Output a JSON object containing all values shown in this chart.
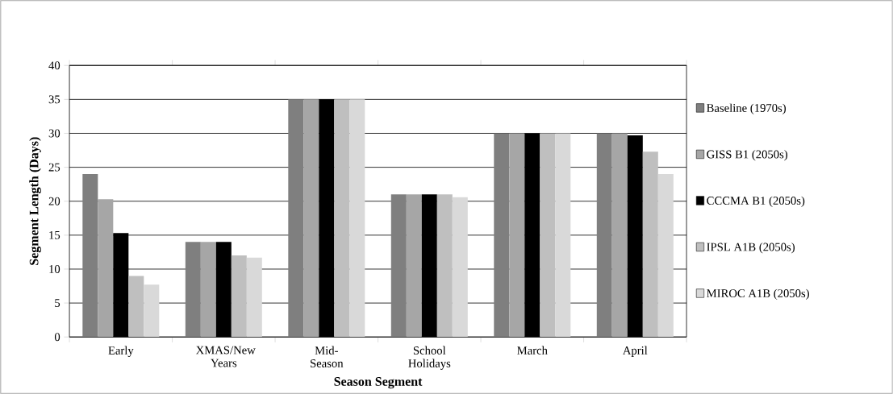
{
  "chart_data": {
    "type": "bar",
    "xlabel": "Season Segment",
    "ylabel": "Segment Length (Days)",
    "categories": [
      "Early",
      "XMAS/New Years",
      "Mid-Season",
      "School Holidays",
      "March",
      "April"
    ],
    "series": [
      {
        "name": "Baseline (1970s)",
        "color": "#7f7f7f",
        "values": [
          24,
          14,
          35,
          21,
          30,
          30
        ]
      },
      {
        "name": "GISS B1 (2050s)",
        "color": "#a6a6a6",
        "values": [
          20.3,
          14,
          35,
          21,
          30,
          30
        ]
      },
      {
        "name": "CCCMA B1 (2050s)",
        "color": "#000000",
        "values": [
          15.3,
          14,
          35,
          21,
          30,
          29.7
        ]
      },
      {
        "name": "IPSL A1B (2050s)",
        "color": "#bfbfbf",
        "values": [
          9,
          12,
          35,
          21,
          30,
          27.3
        ]
      },
      {
        "name": "MIROC A1B (2050s)",
        "color": "#d9d9d9",
        "values": [
          7.7,
          11.7,
          35,
          20.6,
          30,
          24
        ]
      }
    ],
    "ylim": [
      0,
      40
    ],
    "yticks": [
      0,
      5,
      10,
      15,
      20,
      25,
      30,
      35,
      40
    ],
    "grid": "y",
    "legend": "right"
  }
}
